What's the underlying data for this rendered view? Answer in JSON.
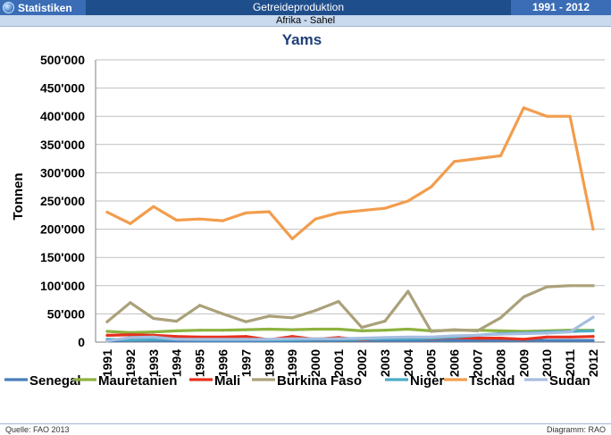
{
  "header": {
    "app_label": "Statistiken",
    "title": "Getreideproduktion",
    "period": "1991 - 2012",
    "region": "Afrika - Sahel"
  },
  "footer": {
    "source": "Quelle: FAO 2013",
    "credit": "Diagramm: RAO"
  },
  "chart_data": {
    "type": "line",
    "title": "Yams",
    "xlabel": "",
    "ylabel": "Tonnen",
    "ylim": [
      0,
      500000
    ],
    "yticks": [
      "0",
      "50'000",
      "100'000",
      "150'000",
      "200'000",
      "250'000",
      "300'000",
      "350'000",
      "400'000",
      "450'000",
      "500'000"
    ],
    "x": [
      "1991",
      "1992",
      "1993",
      "1994",
      "1995",
      "1996",
      "1997",
      "1998",
      "1999",
      "2000",
      "2001",
      "2002",
      "2003",
      "2004",
      "2005",
      "2006",
      "2007",
      "2008",
      "2009",
      "2010",
      "2011",
      "2012"
    ],
    "grid": true,
    "legend": "bottom",
    "series": [
      {
        "name": "Senegal",
        "color": "#4a7ebb",
        "values": [
          2000,
          3000,
          3000,
          2000,
          2000,
          2000,
          2000,
          2000,
          2000,
          3000,
          3000,
          3000,
          3000,
          3000,
          3000,
          3000,
          3000,
          3000,
          3000,
          3000,
          3000,
          3000
        ]
      },
      {
        "name": "Mauretanien",
        "color": "#8db23f",
        "values": [
          19000,
          17000,
          18000,
          20000,
          21000,
          21000,
          22000,
          23000,
          22000,
          23000,
          23000,
          20000,
          21000,
          23000,
          20000,
          21000,
          21000,
          20000,
          19000,
          20000,
          21000,
          21000
        ]
      },
      {
        "name": "Mali",
        "color": "#e8301d",
        "values": [
          12000,
          13000,
          12000,
          10000,
          9000,
          9000,
          10000,
          4000,
          10000,
          5000,
          8000,
          4000,
          7000,
          7000,
          6000,
          8000,
          7000,
          7000,
          5000,
          9000,
          9000,
          10000
        ]
      },
      {
        "name": "Burkina Faso",
        "color": "#aaa17a",
        "values": [
          36000,
          70000,
          42000,
          37000,
          65000,
          50000,
          36000,
          46000,
          43000,
          56000,
          72000,
          26000,
          37000,
          90000,
          19000,
          22000,
          20000,
          43000,
          80000,
          98000,
          100000,
          100000
        ]
      },
      {
        "name": "Niger",
        "color": "#4bacc6",
        "values": [
          5000,
          4000,
          5000,
          5000,
          4000,
          4000,
          4000,
          4000,
          4000,
          5000,
          5000,
          5000,
          6000,
          6000,
          7000,
          9000,
          12000,
          15000,
          16000,
          18000,
          19000,
          20000
        ]
      },
      {
        "name": "Tschad",
        "color": "#f29d4d",
        "values": [
          230000,
          210000,
          240000,
          216000,
          218000,
          215000,
          229000,
          231000,
          183000,
          218000,
          229000,
          233000,
          237000,
          250000,
          275000,
          320000,
          325000,
          330000,
          415000,
          400000,
          400000,
          200000
        ]
      },
      {
        "name": "Sudan",
        "color": "#a6bde0",
        "values": [
          2000,
          8000,
          9000,
          5000,
          5000,
          5000,
          5000,
          5000,
          6000,
          6000,
          6000,
          7000,
          8000,
          9000,
          9000,
          11000,
          12000,
          14000,
          15000,
          16000,
          18000,
          44000
        ]
      }
    ]
  }
}
